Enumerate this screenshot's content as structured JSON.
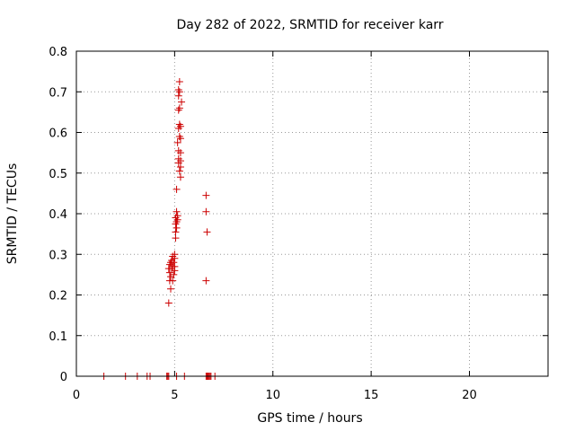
{
  "chart_data": {
    "type": "scatter",
    "title": "Day 282 of 2022, SRMTID for receiver karr",
    "xlabel": "GPS time / hours",
    "ylabel": "SRMTID / TECUs",
    "xlim": [
      0,
      24
    ],
    "ylim": [
      0,
      0.8
    ],
    "x_ticks": [
      0,
      5,
      10,
      15,
      20
    ],
    "y_ticks": [
      0,
      0.1,
      0.2,
      0.3,
      0.4,
      0.5,
      0.6,
      0.7,
      0.8
    ],
    "x_tick_labels": [
      "0",
      "5",
      "10",
      "15",
      "20"
    ],
    "y_tick_labels": [
      "0",
      "0.1",
      "0.2",
      "0.3",
      "0.4",
      "0.5",
      "0.6",
      "0.7",
      "0.8"
    ],
    "grid": true,
    "marker": "+",
    "color": "#cc0000",
    "points": [
      [
        1.4,
        0
      ],
      [
        2.5,
        0
      ],
      [
        3.1,
        0
      ],
      [
        3.6,
        0
      ],
      [
        3.75,
        0
      ],
      [
        4.6,
        0
      ],
      [
        4.65,
        0
      ],
      [
        4.7,
        0
      ],
      [
        5.1,
        0
      ],
      [
        5.5,
        0
      ],
      [
        6.6,
        0
      ],
      [
        6.65,
        0
      ],
      [
        6.7,
        0
      ],
      [
        6.75,
        0
      ],
      [
        6.8,
        0
      ],
      [
        6.85,
        0
      ],
      [
        7.05,
        0
      ],
      [
        4.7,
        0.18
      ],
      [
        4.8,
        0.215
      ],
      [
        4.75,
        0.235
      ],
      [
        4.9,
        0.235
      ],
      [
        4.8,
        0.245
      ],
      [
        4.95,
        0.25
      ],
      [
        4.75,
        0.255
      ],
      [
        5.0,
        0.26
      ],
      [
        4.7,
        0.265
      ],
      [
        4.85,
        0.265
      ],
      [
        4.9,
        0.27
      ],
      [
        5.0,
        0.27
      ],
      [
        4.75,
        0.275
      ],
      [
        4.8,
        0.28
      ],
      [
        4.95,
        0.28
      ],
      [
        4.85,
        0.285
      ],
      [
        5.0,
        0.29
      ],
      [
        4.9,
        0.295
      ],
      [
        5.0,
        0.3
      ],
      [
        5.05,
        0.34
      ],
      [
        5.05,
        0.355
      ],
      [
        5.1,
        0.365
      ],
      [
        5.05,
        0.375
      ],
      [
        5.1,
        0.38
      ],
      [
        5.15,
        0.385
      ],
      [
        5.05,
        0.39
      ],
      [
        5.15,
        0.395
      ],
      [
        5.1,
        0.405
      ],
      [
        5.1,
        0.46
      ],
      [
        5.3,
        0.49
      ],
      [
        5.25,
        0.505
      ],
      [
        5.3,
        0.515
      ],
      [
        5.2,
        0.525
      ],
      [
        5.3,
        0.53
      ],
      [
        5.2,
        0.535
      ],
      [
        5.3,
        0.55
      ],
      [
        5.2,
        0.555
      ],
      [
        5.15,
        0.575
      ],
      [
        5.3,
        0.585
      ],
      [
        5.25,
        0.59
      ],
      [
        5.2,
        0.61
      ],
      [
        5.3,
        0.615
      ],
      [
        5.25,
        0.62
      ],
      [
        5.2,
        0.655
      ],
      [
        5.25,
        0.66
      ],
      [
        5.35,
        0.675
      ],
      [
        5.2,
        0.69
      ],
      [
        5.25,
        0.7
      ],
      [
        5.2,
        0.705
      ],
      [
        5.25,
        0.725
      ],
      [
        6.6,
        0.235
      ],
      [
        6.65,
        0.355
      ],
      [
        6.6,
        0.405
      ],
      [
        6.6,
        0.445
      ]
    ]
  }
}
